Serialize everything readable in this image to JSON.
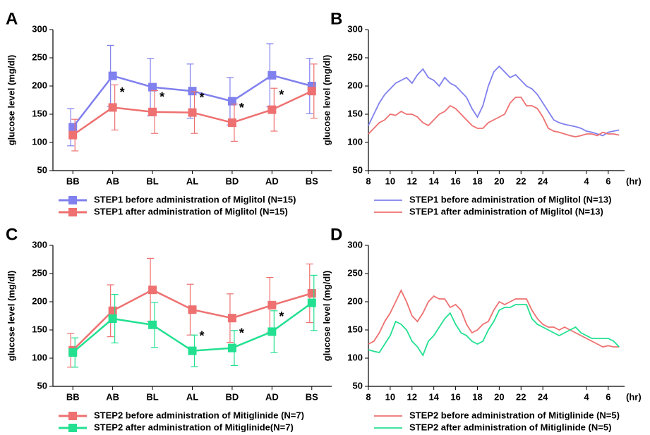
{
  "chart_data": [
    {
      "type": "line",
      "label": "A",
      "ylabel": "glucose level (mg/dl)",
      "markers": true,
      "categories": [
        "BB",
        "AB",
        "BL",
        "AL",
        "BD",
        "AD",
        "BS"
      ],
      "ylim": [
        50,
        300
      ],
      "yticks": [
        50,
        100,
        150,
        200,
        250,
        300
      ],
      "significance_marker": "*",
      "series": [
        {
          "name": "STEP1 before administration of Miglitol (N=15)",
          "color": "#8080ee",
          "values": [
            127,
            218,
            198,
            191,
            173,
            219,
            200
          ],
          "errors": [
            33,
            54,
            51,
            48,
            42,
            56,
            49
          ]
        },
        {
          "name": "STEP1 after administration of Miglitol (N=15)",
          "color": "#ee7070",
          "values": [
            113,
            162,
            154,
            153,
            135,
            158,
            191
          ],
          "errors": [
            28,
            40,
            38,
            37,
            33,
            38,
            48
          ],
          "significant": [
            false,
            true,
            true,
            true,
            true,
            true,
            false
          ]
        }
      ]
    },
    {
      "type": "trace",
      "label": "B",
      "ylabel": "glucose level (mg/dl)",
      "xlabel": "(hr)",
      "x": [
        8,
        8.5,
        9,
        9.5,
        10,
        10.5,
        11,
        11.5,
        12,
        12.5,
        13,
        13.5,
        14,
        14.5,
        15,
        15.5,
        16,
        16.5,
        17,
        17.5,
        18,
        18.5,
        19,
        19.5,
        20,
        20.5,
        21,
        21.5,
        22,
        22.5,
        23,
        23.5,
        24,
        24.5,
        25,
        25.5,
        26,
        26.5,
        27,
        27.5,
        28,
        28.5,
        29,
        29.5,
        30,
        30.5,
        31
      ],
      "xlim": [
        8,
        31.5
      ],
      "xticks": [
        8,
        10,
        12,
        14,
        16,
        18,
        20,
        22,
        24,
        {
          "value": 28,
          "label": "4"
        },
        {
          "value": 30,
          "label": "6"
        }
      ],
      "ylim": [
        50,
        300
      ],
      "yticks": [
        50,
        100,
        150,
        200,
        250,
        300
      ],
      "series": [
        {
          "name": "STEP1 before administration of Miglitol (N=13)",
          "color": "#8080ee",
          "values": [
            130,
            150,
            170,
            185,
            195,
            205,
            210,
            215,
            205,
            220,
            230,
            215,
            210,
            200,
            215,
            205,
            200,
            190,
            180,
            160,
            145,
            165,
            200,
            225,
            235,
            225,
            215,
            220,
            210,
            200,
            195,
            185,
            170,
            155,
            140,
            135,
            132,
            130,
            128,
            125,
            120,
            118,
            115,
            112,
            118,
            120,
            122
          ]
        },
        {
          "name": "STEP1 after administration of Miglitol (N=13)",
          "color": "#ee7070",
          "values": [
            115,
            125,
            135,
            140,
            150,
            148,
            155,
            150,
            150,
            145,
            135,
            130,
            140,
            150,
            155,
            165,
            160,
            150,
            140,
            130,
            125,
            125,
            135,
            140,
            145,
            150,
            170,
            180,
            180,
            165,
            165,
            160,
            145,
            125,
            120,
            118,
            115,
            112,
            110,
            112,
            115,
            115,
            112,
            118,
            115,
            115,
            113
          ]
        }
      ]
    },
    {
      "type": "line",
      "label": "C",
      "ylabel": "glucose level (mg/dl)",
      "markers": true,
      "categories": [
        "BB",
        "AB",
        "BL",
        "AL",
        "BD",
        "AD",
        "BS"
      ],
      "ylim": [
        50,
        300
      ],
      "yticks": [
        50,
        100,
        150,
        200,
        250,
        300
      ],
      "significance_marker": "*",
      "series": [
        {
          "name": "STEP2 before administration of  Mitiglinide (N=7)",
          "color": "#ee7070",
          "values": [
            114,
            184,
            221,
            186,
            171,
            194,
            215
          ],
          "errors": [
            30,
            46,
            56,
            45,
            43,
            49,
            52
          ]
        },
        {
          "name": "STEP2 after administration of Mitiglinide(N=7)",
          "color": "#22e090",
          "values": [
            110,
            170,
            159,
            113,
            118,
            147,
            198
          ],
          "errors": [
            26,
            43,
            40,
            28,
            31,
            37,
            49
          ],
          "significant": [
            false,
            false,
            false,
            true,
            true,
            true,
            false
          ]
        }
      ]
    },
    {
      "type": "trace",
      "label": "D",
      "ylabel": "glucose level (mg/dl)",
      "xlabel": "(hr)",
      "x": [
        8,
        8.5,
        9,
        9.5,
        10,
        10.5,
        11,
        11.5,
        12,
        12.5,
        13,
        13.5,
        14,
        14.5,
        15,
        15.5,
        16,
        16.5,
        17,
        17.5,
        18,
        18.5,
        19,
        19.5,
        20,
        20.5,
        21,
        21.5,
        22,
        22.5,
        23,
        23.5,
        24,
        24.5,
        25,
        25.5,
        26,
        26.5,
        27,
        27.5,
        28,
        28.5,
        29,
        29.5,
        30,
        30.5,
        31
      ],
      "xlim": [
        8,
        31.5
      ],
      "xticks": [
        8,
        10,
        12,
        14,
        16,
        18,
        20,
        22,
        24,
        {
          "value": 28,
          "label": "4"
        },
        {
          "value": 30,
          "label": "6"
        }
      ],
      "ylim": [
        50,
        300
      ],
      "yticks": [
        50,
        100,
        150,
        200,
        250,
        300
      ],
      "series": [
        {
          "name": "STEP2 before administration of Mitiglinide (N=5)",
          "color": "#ee7070",
          "values": [
            125,
            130,
            145,
            165,
            180,
            200,
            220,
            200,
            175,
            165,
            180,
            200,
            210,
            205,
            205,
            190,
            195,
            185,
            160,
            145,
            150,
            160,
            165,
            185,
            200,
            195,
            200,
            205,
            205,
            205,
            185,
            170,
            160,
            155,
            155,
            150,
            155,
            150,
            145,
            140,
            135,
            130,
            125,
            120,
            122,
            120,
            120
          ]
        },
        {
          "name": "STEP2 after administration of Mitiglinide (N=5)",
          "color": "#22e090",
          "values": [
            115,
            112,
            110,
            125,
            140,
            165,
            160,
            150,
            130,
            120,
            105,
            130,
            140,
            155,
            170,
            180,
            160,
            145,
            140,
            130,
            125,
            130,
            150,
            165,
            185,
            190,
            190,
            195,
            195,
            195,
            170,
            160,
            155,
            150,
            145,
            140,
            145,
            150,
            155,
            145,
            140,
            135,
            135,
            135,
            135,
            130,
            120
          ]
        }
      ]
    }
  ]
}
